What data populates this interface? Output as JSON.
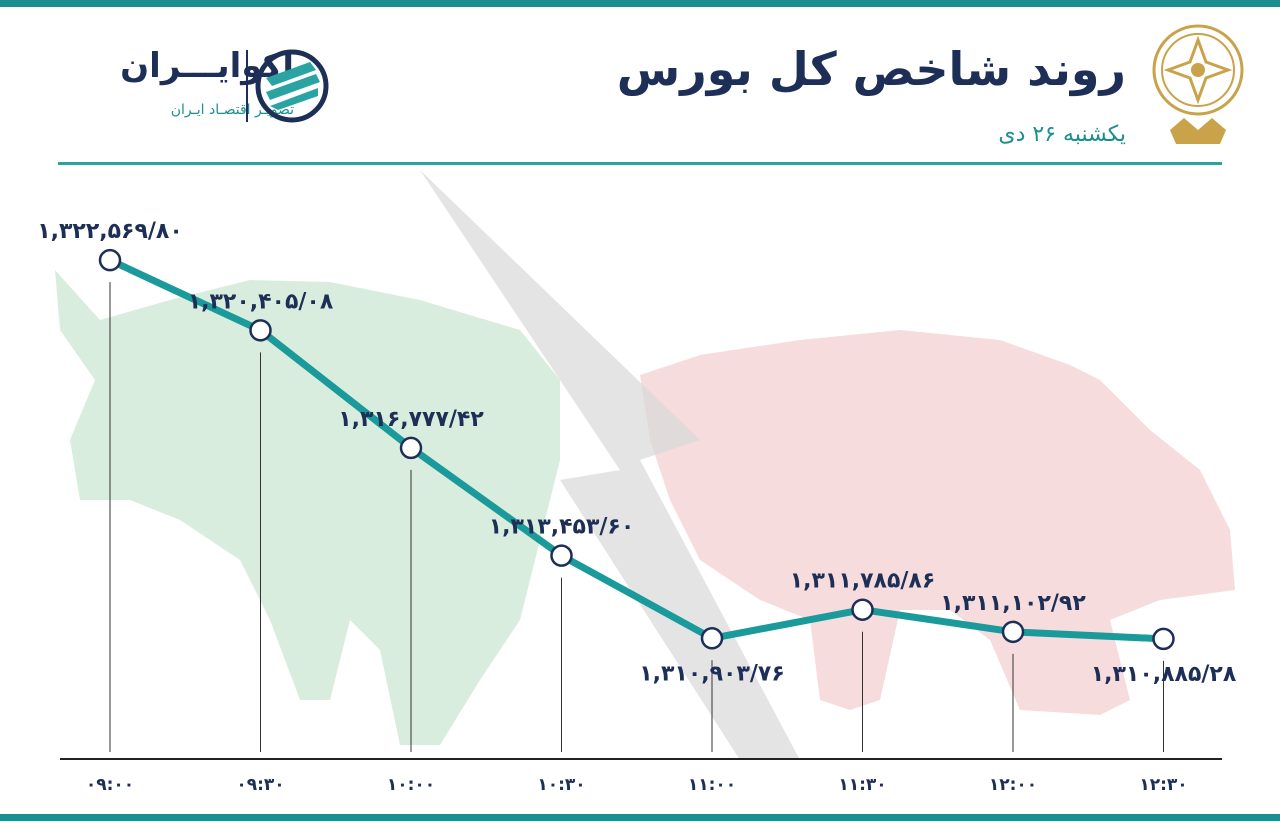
{
  "header": {
    "title": "روند شاخص کل بورس",
    "date": "یکشنبه ۲۶ دی"
  },
  "brand": {
    "name": "اکوایـــران",
    "tagline": "تصویـر اقتصـاد ایـران",
    "logo_icon": "ecoiran-logo-icon",
    "seal_icon": "stock-exchange-seal-icon"
  },
  "colors": {
    "accent": "#1a8f8f",
    "line": "#1a9a9a",
    "label": "#1d2f56",
    "bull": "#cfe9d6",
    "bear": "#f4d3d3",
    "arrow": "#d9d9d9"
  },
  "chart_data": {
    "type": "line",
    "categories": [
      "۰۹:۰۰",
      "۰۹:۳۰",
      "۱۰:۰۰",
      "۱۰:۳۰",
      "۱۱:۰۰",
      "۱۱:۳۰",
      "۱۲:۰۰",
      "۱۲:۳۰"
    ],
    "values": [
      1322569.8,
      1320405.08,
      1316777.42,
      1313453.6,
      1310903.76,
      1311785.86,
      1311102.92,
      1310885.28
    ],
    "data_labels": [
      "۱,۳۲۲,۵۶۹/۸۰",
      "۱,۳۲۰,۴۰۵/۰۸",
      "۱,۳۱۶,۷۷۷/۴۲",
      "۱,۳۱۳,۴۵۳/۶۰",
      "۱,۳۱۰,۹۰۳/۷۶",
      "۱,۳۱۱,۷۸۵/۸۶",
      "۱,۳۱۱,۱۰۲/۹۲",
      "۱,۳۱۰,۸۸۵/۲۸"
    ],
    "label_placement": [
      "above",
      "above",
      "above",
      "above",
      "below",
      "above",
      "above",
      "below"
    ],
    "ylim": [
      1309000,
      1323500
    ],
    "grid": false,
    "title": "روند شاخص کل بورس",
    "xlabel": "",
    "ylabel": ""
  }
}
